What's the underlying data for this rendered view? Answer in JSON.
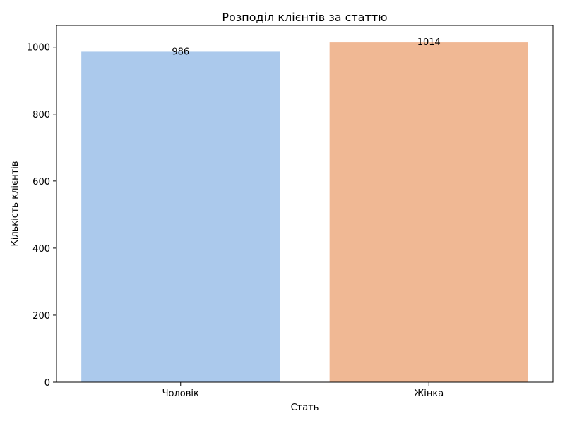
{
  "chart_data": {
    "type": "bar",
    "title": "Розподіл клієнтів за статтю",
    "xlabel": "Стать",
    "ylabel": "Кількість клієнтів",
    "categories": [
      "Чоловік",
      "Жінка"
    ],
    "values": [
      986,
      1014
    ],
    "data_labels": [
      "986",
      "1014"
    ],
    "colors": [
      "#abc9ec",
      "#f0b894"
    ],
    "ylim": [
      0,
      1064.7
    ],
    "yticks": [
      0,
      200,
      400,
      600,
      800,
      1000
    ],
    "grid": false
  }
}
